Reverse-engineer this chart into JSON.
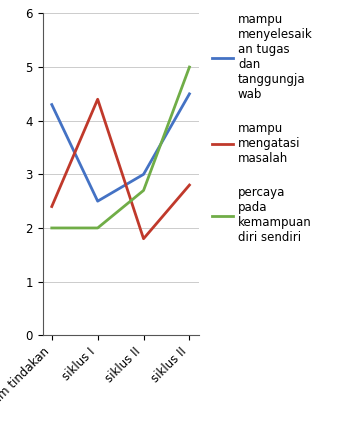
{
  "x_labels": [
    "sebelum tindakan",
    "siklus I",
    "siklus II",
    "siklus II"
  ],
  "series": [
    {
      "label": "mampu\nmenyelesaik\nan tugas\ndan\ntanggungja\nwab",
      "color": "#4472C4",
      "values": [
        4.3,
        2.5,
        3.0,
        4.5
      ]
    },
    {
      "label": "mampu\nmengatasi\nmasalah",
      "color": "#C0392B",
      "values": [
        2.4,
        4.4,
        1.8,
        2.8
      ]
    },
    {
      "label": "percaya\npada\nkemampuan\ndiri sendiri",
      "color": "#70AD47",
      "values": [
        2.0,
        2.0,
        2.7,
        5.0
      ]
    }
  ],
  "ylim": [
    0,
    6
  ],
  "yticks": [
    0,
    1,
    2,
    3,
    4,
    5,
    6
  ],
  "background_color": "#ffffff",
  "legend_fontsize": 8.5,
  "tick_fontsize": 8.5,
  "line_width": 2.0,
  "figsize": [
    3.55,
    4.47
  ],
  "dpi": 100
}
